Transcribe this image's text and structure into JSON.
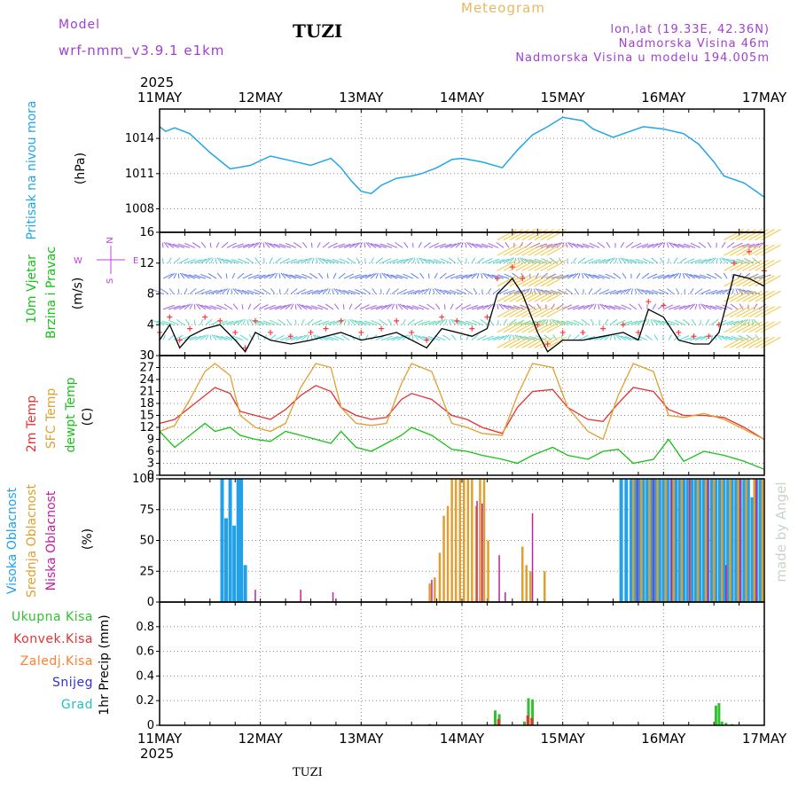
{
  "header": {
    "model_label": "Model",
    "model_name": "wrf-nmm_v3.9.1 e1km",
    "station": "TUZI",
    "product": "Meteogram",
    "lonlat": "lon,lat (19.33E, 42.36N)",
    "elev": "Nadmorska Visina 46m",
    "elev_model": "Nadmorska Visina u modelu 194.005m",
    "year": "2025",
    "footer_station": "TUZI",
    "watermark": "made by Angel"
  },
  "colors": {
    "pressure": "#22a6e8",
    "wind_speed": "#000000",
    "wind_gust": "#ff3a3a",
    "t2m": "#e83030",
    "tsfc": "#e0a030",
    "dewpt": "#18c018",
    "cloud_high": "#22a0e8",
    "cloud_mid": "#e0a030",
    "cloud_low": "#c020a0",
    "precip_total": "#30c030",
    "precip_conv": "#e83030",
    "precip_frozen": "#ff8030",
    "precip_snow": "#3030e0",
    "precip_hail": "#20c0c0",
    "compass": "#c040e0",
    "model": "#a040d0",
    "product": "#e8b860"
  },
  "chart_data": [
    {
      "type": "line",
      "panel": "pressure",
      "ylabel_lines": [
        "Pritisak na nivou mora",
        "(hPa)"
      ],
      "x_ticks": [
        "11MAY",
        "12MAY",
        "13MAY",
        "14MAY",
        "15MAY",
        "16MAY",
        "17MAY"
      ],
      "ylim": [
        1006,
        1016.5
      ],
      "yticks": [
        1008,
        1011,
        1014
      ],
      "x_days": [
        0,
        0.06,
        0.15,
        0.3,
        0.5,
        0.7,
        0.9,
        1.1,
        1.3,
        1.5,
        1.7,
        1.8,
        1.9,
        2.0,
        2.1,
        2.2,
        2.35,
        2.5,
        2.6,
        2.75,
        2.9,
        3.0,
        3.2,
        3.4,
        3.55,
        3.7,
        3.85,
        4.0,
        4.2,
        4.3,
        4.5,
        4.6,
        4.8,
        5.0,
        5.2,
        5.35,
        5.5,
        5.6,
        5.8,
        6.0
      ],
      "series": [
        {
          "values": [
            1015,
            1014.6,
            1014.9,
            1014.4,
            1012.8,
            1011.4,
            1011.7,
            1012.5,
            1012.1,
            1011.7,
            1012.3,
            1011.5,
            1010.4,
            1009.5,
            1009.3,
            1010.0,
            1010.6,
            1010.8,
            1011.0,
            1011.5,
            1012.2,
            1012.3,
            1012.0,
            1011.5,
            1013.0,
            1014.3,
            1015.0,
            1015.8,
            1015.5,
            1014.8,
            1014.1,
            1014.4,
            1015.0,
            1014.8,
            1014.4,
            1013.5,
            1012.0,
            1010.8,
            1010.2,
            1009.0
          ]
        }
      ]
    },
    {
      "type": "line",
      "panel": "wind",
      "ylabel_lines": [
        "10m Vjetar",
        "Brzina i Pravac",
        "(m/s)"
      ],
      "compass": {
        "n": "N",
        "s": "S",
        "w": "W",
        "e": "E"
      },
      "ylim": [
        0,
        16
      ],
      "yticks": [
        0,
        4,
        8,
        12,
        16
      ],
      "x_days": [
        0,
        0.1,
        0.2,
        0.3,
        0.45,
        0.6,
        0.75,
        0.85,
        0.95,
        1.1,
        1.3,
        1.5,
        1.65,
        1.8,
        2.0,
        2.2,
        2.35,
        2.5,
        2.65,
        2.8,
        2.95,
        3.1,
        3.25,
        3.35,
        3.5,
        3.6,
        3.75,
        3.85,
        4.0,
        4.2,
        4.4,
        4.6,
        4.75,
        4.85,
        5.0,
        5.15,
        5.3,
        5.45,
        5.55,
        5.7,
        5.85,
        6.0
      ],
      "series": [
        {
          "name": "speed",
          "values": [
            2,
            4,
            1,
            2.5,
            3.5,
            4,
            2,
            0.5,
            3,
            2,
            1.5,
            2,
            2.5,
            3,
            2,
            2.5,
            3,
            2,
            1,
            3.5,
            3,
            2.5,
            3.5,
            8,
            10,
            8,
            3,
            0.5,
            2,
            2,
            2.5,
            3,
            2,
            6,
            5,
            2,
            1.5,
            1.5,
            3,
            10.5,
            10,
            9
          ]
        },
        {
          "name": "gust",
          "values": [
            3,
            5,
            2,
            3.5,
            5,
            4.5,
            3,
            1,
            4.5,
            3,
            2.5,
            3,
            3.5,
            4.5,
            3,
            3.5,
            4.5,
            3,
            2,
            5,
            4.5,
            3.5,
            5,
            10,
            11.5,
            10,
            4,
            1.5,
            3,
            3,
            3.5,
            4,
            3,
            7,
            6.5,
            3,
            2.5,
            2.5,
            4,
            12,
            13.5,
            11
          ]
        }
      ]
    },
    {
      "type": "line",
      "panel": "temperature",
      "ylabel_lines": [
        "2m Temp",
        "SFC Temp",
        "dewpt Temp",
        "(C)"
      ],
      "ylim": [
        0,
        30
      ],
      "yticks": [
        0,
        3,
        6,
        9,
        12,
        15,
        18,
        21,
        24,
        27,
        30
      ],
      "x_days": [
        0,
        0.15,
        0.3,
        0.45,
        0.55,
        0.7,
        0.8,
        0.95,
        1.1,
        1.25,
        1.4,
        1.55,
        1.7,
        1.8,
        1.95,
        2.1,
        2.25,
        2.4,
        2.5,
        2.7,
        2.9,
        3.05,
        3.2,
        3.4,
        3.55,
        3.7,
        3.9,
        4.05,
        4.25,
        4.4,
        4.55,
        4.7,
        4.9,
        5.05,
        5.2,
        5.4,
        5.6,
        5.8,
        6.0
      ],
      "series": [
        {
          "name": "2m",
          "values": [
            13,
            14,
            17,
            20,
            22,
            20.5,
            16,
            15,
            14,
            16.5,
            20,
            22.5,
            21,
            17,
            15,
            14,
            14.5,
            19,
            20.5,
            19,
            15,
            14,
            12,
            10.5,
            17,
            21,
            21.5,
            17,
            14,
            13.5,
            18,
            22,
            21,
            16.5,
            15,
            15,
            14.5,
            12,
            9
          ]
        },
        {
          "name": "sfc",
          "values": [
            11,
            12.5,
            19,
            26,
            28,
            25,
            15,
            12,
            11,
            13,
            22,
            28,
            27,
            17,
            13,
            12.5,
            13,
            23,
            28,
            26,
            13,
            12,
            10.5,
            10,
            20,
            28,
            27,
            17,
            11,
            9,
            20,
            28,
            26,
            15,
            14.5,
            15.5,
            14,
            11.5,
            9
          ]
        },
        {
          "name": "dewpt",
          "values": [
            11,
            7,
            10,
            13,
            11,
            12,
            10,
            9,
            8.5,
            11,
            10,
            9,
            8,
            11,
            7,
            6,
            8,
            10,
            12,
            10,
            6.5,
            6,
            5,
            4,
            3,
            5,
            7,
            5,
            4,
            6,
            6.5,
            3,
            4,
            9,
            3.5,
            6,
            5,
            3.5,
            1.5
          ]
        }
      ]
    },
    {
      "type": "bar",
      "panel": "clouds",
      "ylabel_lines": [
        "Visoka Oblacnost",
        "Srednja Oblacnost",
        "Niska Oblacnost",
        "(%)"
      ],
      "ylim": [
        0,
        100
      ],
      "yticks": [
        0,
        25,
        50,
        75,
        100
      ],
      "series": [
        {
          "name": "high",
          "x": [
            0.62,
            0.66,
            0.7,
            0.74,
            0.78,
            0.81,
            0.85,
            4.58,
            4.63,
            4.68,
            4.72,
            4.76,
            4.8,
            4.84,
            4.88,
            4.92,
            4.96,
            5.0,
            5.04,
            5.08,
            5.12,
            5.16,
            5.2,
            5.24,
            5.28,
            5.32,
            5.36,
            5.4,
            5.44,
            5.48,
            5.52,
            5.56,
            5.6,
            5.64,
            5.68,
            5.72,
            5.76,
            5.8,
            5.84,
            5.88,
            5.92,
            5.96
          ],
          "values": [
            100,
            68,
            100,
            62,
            100,
            100,
            30,
            100,
            100,
            100,
            100,
            100,
            100,
            100,
            100,
            100,
            100,
            100,
            100,
            100,
            100,
            100,
            100,
            100,
            100,
            100,
            100,
            100,
            100,
            100,
            100,
            100,
            100,
            100,
            100,
            100,
            100,
            100,
            100,
            85,
            100,
            100
          ]
        },
        {
          "name": "mid",
          "x": [
            2.68,
            2.73,
            2.78,
            2.82,
            2.86,
            2.9,
            2.94,
            2.98,
            3.02,
            3.06,
            3.1,
            3.14,
            3.18,
            3.22,
            3.26,
            3.6,
            3.64,
            3.68,
            3.82,
            4.7,
            4.78,
            4.86,
            4.94,
            5.02,
            5.1,
            5.18,
            5.26,
            5.34,
            5.42,
            5.5,
            5.58,
            5.66,
            5.74,
            5.82,
            5.9,
            5.98
          ],
          "values": [
            15,
            20,
            40,
            70,
            78,
            100,
            100,
            100,
            100,
            100,
            100,
            78,
            100,
            100,
            50,
            45,
            30,
            25,
            25,
            100,
            100,
            100,
            100,
            100,
            100,
            100,
            100,
            100,
            100,
            100,
            100,
            100,
            100,
            100,
            100,
            100
          ]
        },
        {
          "name": "low",
          "x": [
            0.95,
            1.4,
            1.72,
            2.7,
            3.15,
            3.2,
            3.37,
            3.43,
            3.7,
            4.74,
            4.9,
            5.08,
            5.26,
            5.44,
            5.62,
            5.76,
            5.92
          ],
          "values": [
            10,
            10,
            8,
            18,
            82,
            80,
            38,
            8,
            72,
            100,
            100,
            100,
            100,
            100,
            30,
            100,
            100
          ]
        }
      ]
    },
    {
      "type": "bar",
      "panel": "precip",
      "ylabel_lines": [
        "1hr Precip (mm)"
      ],
      "legend": [
        "Ukupna Kisa",
        "Konvek.Kisa",
        "Zaledj.Kisa",
        "Snijeg",
        "Grad"
      ],
      "ylim": [
        0,
        1
      ],
      "yticks": [
        0,
        0.2,
        0.4,
        0.6,
        0.8
      ],
      "series": [
        {
          "name": "total",
          "x": [
            2.68,
            3.33,
            3.37,
            3.62,
            3.66,
            3.7,
            5.52,
            5.55,
            5.58,
            5.62,
            5.68
          ],
          "values": [
            0.01,
            0.12,
            0.09,
            0.03,
            0.22,
            0.21,
            0.16,
            0.18,
            0.03,
            0.02,
            0.01
          ]
        },
        {
          "name": "convective",
          "x": [
            3.35,
            3.64,
            3.68
          ],
          "values": [
            0.05,
            0.08,
            0.06
          ]
        }
      ]
    }
  ]
}
